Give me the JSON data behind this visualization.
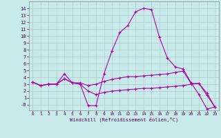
{
  "xlabel": "Windchill (Refroidissement éolien,°C)",
  "background_color": "#c8eaea",
  "grid_color": "#b0c8c8",
  "line_color": "#aa00aa",
  "x_ticks": [
    0,
    1,
    2,
    3,
    4,
    5,
    6,
    7,
    8,
    9,
    10,
    11,
    12,
    13,
    14,
    15,
    16,
    17,
    18,
    19,
    20,
    21,
    22,
    23
  ],
  "y_ticks": [
    0,
    1,
    2,
    3,
    4,
    5,
    6,
    7,
    8,
    9,
    10,
    11,
    12,
    13,
    14
  ],
  "y_tick_labels": [
    "-0",
    "1",
    "2",
    "3",
    "4",
    "5",
    "6",
    "7",
    "8",
    "9",
    "10",
    "11",
    "12",
    "13",
    "14"
  ],
  "xlim": [
    -0.5,
    23.5
  ],
  "ylim": [
    -0.8,
    15.0
  ],
  "series": [
    [
      3.3,
      2.8,
      3.0,
      3.0,
      4.5,
      3.2,
      3.0,
      -0.1,
      -0.1,
      4.5,
      7.8,
      10.5,
      11.5,
      13.5,
      14.0,
      13.8,
      9.8,
      6.8,
      5.5,
      5.2,
      3.2,
      1.5,
      -0.6,
      -0.3
    ],
    [
      3.3,
      2.8,
      3.0,
      3.0,
      3.8,
      3.2,
      3.2,
      2.8,
      3.0,
      3.4,
      3.7,
      3.9,
      4.1,
      4.1,
      4.2,
      4.3,
      4.4,
      4.5,
      4.7,
      4.9,
      3.1,
      3.1,
      1.7,
      -0.3
    ],
    [
      3.3,
      2.8,
      3.0,
      3.0,
      3.8,
      3.2,
      3.0,
      2.0,
      1.5,
      1.8,
      2.0,
      2.1,
      2.2,
      2.3,
      2.4,
      2.4,
      2.5,
      2.6,
      2.7,
      2.8,
      3.0,
      3.1,
      1.4,
      -0.3
    ]
  ]
}
